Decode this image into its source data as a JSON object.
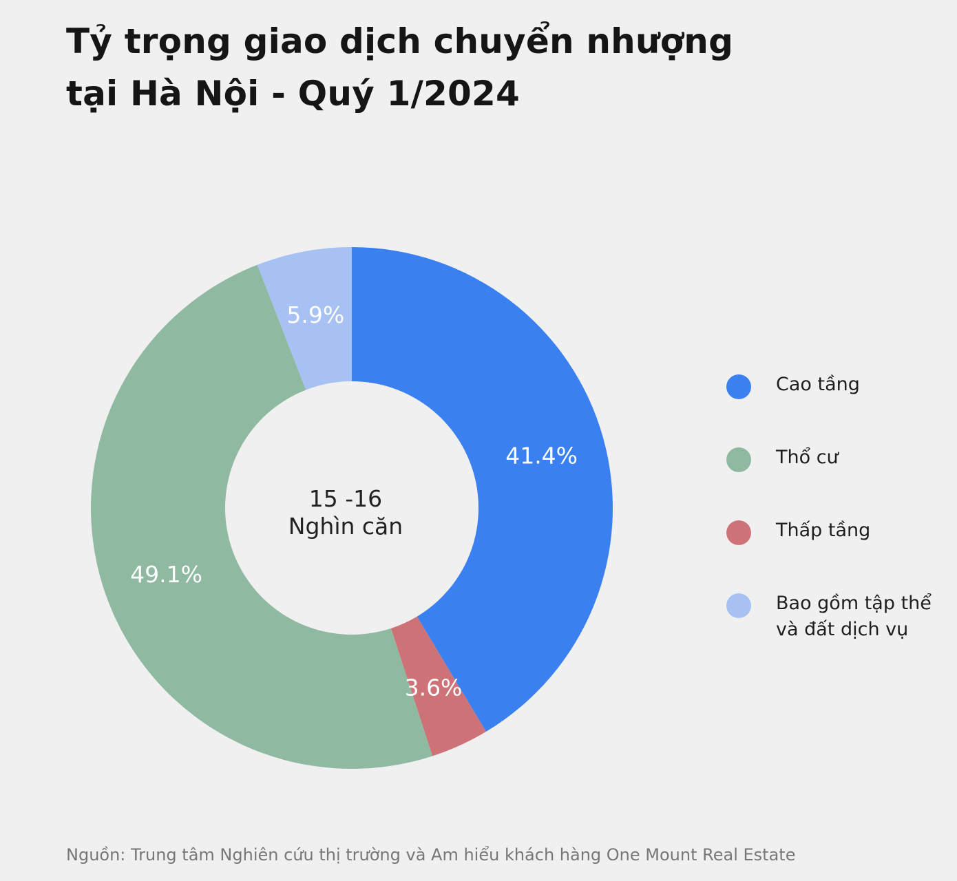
{
  "title_lines": [
    "Tỷ trọng giao dịch chuyển nhượng",
    "tại Hà Nội - Quý 1/2024"
  ],
  "center_label": [
    "15 -16",
    "Nghìn căn"
  ],
  "source": "Nguồn: Trung tâm Nghiên cứu thị trường và Am hiểu khách hàng One Mount Real Estate",
  "chart_data": {
    "type": "pie",
    "donut": true,
    "title": "Tỷ trọng giao dịch chuyển nhượng tại Hà Nội - Quý 1/2024",
    "categories": [
      "Cao tầng",
      "Thấp tầng",
      "Thổ cư",
      "Bao gồm tập thể và đất dịch vụ"
    ],
    "values": [
      41.4,
      3.6,
      49.1,
      5.9
    ],
    "labels": [
      "41.4%",
      "3.6%",
      "49.1%",
      "5.9%"
    ],
    "colors": [
      "#3a80f0",
      "#cd7378",
      "#90b9a1",
      "#a8c1f3"
    ],
    "center_text": "15 -16 Nghìn căn",
    "legend_position": "right"
  },
  "legend": [
    {
      "label": "Cao tầng",
      "color": "#3a80f0"
    },
    {
      "label": "Thổ cư",
      "color": "#90b9a1"
    },
    {
      "label": "Thấp tầng",
      "color": "#cd7378"
    },
    {
      "label": "Bao gồm tập thể và đất dịch vụ",
      "color": "#a8c1f3"
    }
  ]
}
